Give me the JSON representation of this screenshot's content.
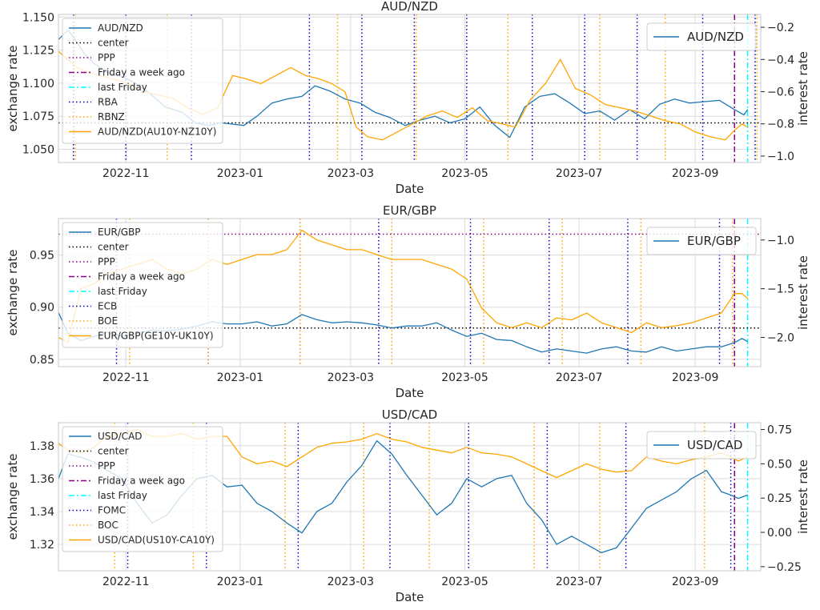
{
  "chart_data": [
    {
      "type": "line",
      "title": "AUD/NZD",
      "xlabel": "Date",
      "ylabel": "exchange rate",
      "y2label": "interest rate",
      "xlim": [
        "2022-09-26",
        "2023-10-06"
      ],
      "ylim": [
        1.04,
        1.152
      ],
      "y2lim": [
        -1.04,
        -0.12
      ],
      "x_ticks": [
        "2022-11",
        "2023-01",
        "2023-03",
        "2023-05",
        "2023-07",
        "2023-09"
      ],
      "y_ticks": [
        "1.050",
        "1.075",
        "1.100",
        "1.125",
        "1.150"
      ],
      "y2_ticks": [
        "-1.0",
        "-0.8",
        "-0.6",
        "-0.4",
        "-0.2"
      ],
      "grid": true,
      "legend_left": [
        "AUD/NZD",
        "center",
        "PPP",
        "Friday a week ago",
        "last Friday",
        "RBA",
        "RBNZ",
        "AUD/NZD(AU10Y-NZ10Y)"
      ],
      "legend_right": [
        "AUD/NZD"
      ],
      "colors": {
        "rate": "#1f77b4",
        "spread": "#ffa500",
        "center": "#000000",
        "ppp": "#800080",
        "week": "#8b008b",
        "last": "#00ffff",
        "cb1": "#0000cd",
        "cb2": "#ffa500"
      },
      "center": 1.07,
      "ppp": null,
      "friday_week_ago": "2023-09-22",
      "last_friday": "2023-09-29",
      "cb1_dates": [
        "2022-10-04",
        "2022-11-01",
        "2022-12-06",
        "2023-02-07",
        "2023-03-07",
        "2023-04-04",
        "2023-05-02",
        "2023-06-06",
        "2023-07-04",
        "2023-08-01",
        "2023-09-05",
        "2023-10-03"
      ],
      "cb2_dates": [
        "2022-10-05",
        "2022-11-23",
        "2023-02-22",
        "2023-04-05",
        "2023-05-24",
        "2023-07-12",
        "2023-08-16",
        "2023-10-04"
      ],
      "series": [
        {
          "name": "AUD/NZD",
          "axis": "left",
          "x": [
            "2022-09-26",
            "2022-10-01",
            "2022-10-04",
            "2022-10-10",
            "2022-10-15",
            "2022-10-22",
            "2022-10-30",
            "2022-11-06",
            "2022-11-14",
            "2022-11-22",
            "2022-12-01",
            "2022-12-08",
            "2022-12-15",
            "2022-12-22",
            "2022-12-28",
            "2023-01-03",
            "2023-01-10",
            "2023-01-18",
            "2023-01-26",
            "2023-02-03",
            "2023-02-10",
            "2023-02-18",
            "2023-02-26",
            "2023-03-06",
            "2023-03-14",
            "2023-03-22",
            "2023-03-30",
            "2023-04-07",
            "2023-04-15",
            "2023-04-23",
            "2023-05-01",
            "2023-05-09",
            "2023-05-17",
            "2023-05-25",
            "2023-06-02",
            "2023-06-10",
            "2023-06-18",
            "2023-06-26",
            "2023-07-04",
            "2023-07-12",
            "2023-07-20",
            "2023-07-28",
            "2023-08-05",
            "2023-08-13",
            "2023-08-21",
            "2023-08-29",
            "2023-09-06",
            "2023-09-14",
            "2023-09-22",
            "2023-09-27",
            "2023-09-29"
          ],
          "y": [
            1.133,
            1.14,
            1.135,
            1.122,
            1.115,
            1.108,
            1.105,
            1.1,
            1.092,
            1.082,
            1.078,
            1.07,
            1.068,
            1.07,
            1.069,
            1.068,
            1.075,
            1.085,
            1.088,
            1.09,
            1.098,
            1.094,
            1.088,
            1.085,
            1.078,
            1.074,
            1.068,
            1.072,
            1.075,
            1.07,
            1.073,
            1.082,
            1.068,
            1.059,
            1.082,
            1.09,
            1.092,
            1.085,
            1.077,
            1.079,
            1.072,
            1.08,
            1.073,
            1.084,
            1.088,
            1.085,
            1.086,
            1.087,
            1.08,
            1.076,
            1.08
          ]
        },
        {
          "name": "AUD/NZD(AU10Y-NZ10Y)",
          "axis": "right",
          "x": [
            "2022-09-26",
            "2022-10-01",
            "2022-10-06",
            "2022-10-12",
            "2022-10-18",
            "2022-10-25",
            "2022-11-02",
            "2022-11-10",
            "2022-11-18",
            "2022-11-26",
            "2022-12-04",
            "2022-12-12",
            "2022-12-20",
            "2022-12-28",
            "2023-01-04",
            "2023-01-12",
            "2023-01-20",
            "2023-01-28",
            "2023-02-05",
            "2023-02-12",
            "2023-02-19",
            "2023-02-26",
            "2023-03-04",
            "2023-03-10",
            "2023-03-18",
            "2023-03-26",
            "2023-04-03",
            "2023-04-11",
            "2023-04-19",
            "2023-04-27",
            "2023-05-05",
            "2023-05-13",
            "2023-05-21",
            "2023-05-28",
            "2023-06-05",
            "2023-06-13",
            "2023-06-21",
            "2023-06-29",
            "2023-07-07",
            "2023-07-15",
            "2023-07-23",
            "2023-07-31",
            "2023-08-08",
            "2023-08-16",
            "2023-08-24",
            "2023-09-01",
            "2023-09-09",
            "2023-09-17",
            "2023-09-22",
            "2023-09-26",
            "2023-09-29"
          ],
          "y": [
            -0.35,
            -0.4,
            -0.45,
            -0.48,
            -0.5,
            -0.52,
            -0.55,
            -0.6,
            -0.62,
            -0.64,
            -0.7,
            -0.74,
            -0.7,
            -0.5,
            -0.52,
            -0.55,
            -0.5,
            -0.45,
            -0.5,
            -0.52,
            -0.55,
            -0.6,
            -0.82,
            -0.88,
            -0.9,
            -0.85,
            -0.8,
            -0.75,
            -0.72,
            -0.76,
            -0.7,
            -0.78,
            -0.8,
            -0.82,
            -0.65,
            -0.55,
            -0.4,
            -0.58,
            -0.62,
            -0.68,
            -0.7,
            -0.72,
            -0.75,
            -0.78,
            -0.8,
            -0.85,
            -0.88,
            -0.9,
            -0.84,
            -0.8,
            -0.82
          ]
        }
      ]
    },
    {
      "type": "line",
      "title": "EUR/GBP",
      "xlabel": "Date",
      "ylabel": "exchange rate",
      "y2label": "interest rate",
      "xlim": [
        "2022-09-26",
        "2023-10-06"
      ],
      "ylim": [
        0.843,
        0.985
      ],
      "y2lim": [
        -2.3,
        -0.78
      ],
      "x_ticks": [
        "2022-11",
        "2023-01",
        "2023-03",
        "2023-05",
        "2023-07",
        "2023-09"
      ],
      "y_ticks": [
        "0.85",
        "0.90",
        "0.95"
      ],
      "y2_ticks": [
        "-2.0",
        "-1.5",
        "-1.0"
      ],
      "grid": true,
      "legend_left": [
        "EUR/GBP",
        "center",
        "PPP",
        "Friday a week ago",
        "last Friday",
        "ECB",
        "BOE",
        "EUR/GBP(GE10Y-UK10Y)"
      ],
      "legend_right": [
        "EUR/GBP"
      ],
      "colors": {
        "rate": "#1f77b4",
        "spread": "#ffa500",
        "center": "#000000",
        "ppp": "#800080",
        "week": "#8b008b",
        "last": "#00ffff",
        "cb1": "#0000cd",
        "cb2": "#ffa500"
      },
      "center": 0.88,
      "ppp": 0.97,
      "friday_week_ago": "2023-09-22",
      "last_friday": "2023-09-29",
      "cb1_dates": [
        "2022-10-27",
        "2022-12-15",
        "2023-02-02",
        "2023-03-16",
        "2023-05-04",
        "2023-06-15",
        "2023-07-27",
        "2023-09-14",
        "2023-10-26"
      ],
      "cb2_dates": [
        "2022-11-03",
        "2022-12-15",
        "2023-02-02",
        "2023-03-23",
        "2023-05-11",
        "2023-06-22",
        "2023-08-03",
        "2023-09-21"
      ],
      "series": [
        {
          "name": "EUR/GBP",
          "axis": "left",
          "x": [
            "2022-09-26",
            "2022-10-01",
            "2022-10-08",
            "2022-10-15",
            "2022-10-22",
            "2022-10-30",
            "2022-11-07",
            "2022-11-15",
            "2022-11-23",
            "2022-12-01",
            "2022-12-09",
            "2022-12-17",
            "2022-12-25",
            "2023-01-02",
            "2023-01-10",
            "2023-01-18",
            "2023-01-26",
            "2023-02-03",
            "2023-02-11",
            "2023-02-19",
            "2023-02-27",
            "2023-03-07",
            "2023-03-15",
            "2023-03-23",
            "2023-03-31",
            "2023-04-08",
            "2023-04-16",
            "2023-04-24",
            "2023-05-02",
            "2023-05-10",
            "2023-05-18",
            "2023-05-26",
            "2023-06-03",
            "2023-06-11",
            "2023-06-19",
            "2023-06-27",
            "2023-07-05",
            "2023-07-13",
            "2023-07-21",
            "2023-07-29",
            "2023-08-06",
            "2023-08-14",
            "2023-08-22",
            "2023-08-30",
            "2023-09-07",
            "2023-09-15",
            "2023-09-22",
            "2023-09-26",
            "2023-09-29"
          ],
          "y": [
            0.895,
            0.875,
            0.868,
            0.872,
            0.876,
            0.872,
            0.875,
            0.878,
            0.877,
            0.879,
            0.882,
            0.886,
            0.884,
            0.884,
            0.886,
            0.882,
            0.884,
            0.893,
            0.888,
            0.885,
            0.886,
            0.885,
            0.883,
            0.88,
            0.882,
            0.882,
            0.885,
            0.878,
            0.872,
            0.875,
            0.869,
            0.868,
            0.862,
            0.857,
            0.86,
            0.858,
            0.856,
            0.86,
            0.862,
            0.858,
            0.857,
            0.862,
            0.858,
            0.86,
            0.862,
            0.862,
            0.866,
            0.87,
            0.867
          ]
        },
        {
          "name": "EUR/GBP(GE10Y-UK10Y)",
          "axis": "right",
          "x": [
            "2022-09-26",
            "2022-10-01",
            "2022-10-08",
            "2022-10-15",
            "2022-10-22",
            "2022-10-30",
            "2022-11-07",
            "2022-11-15",
            "2022-11-23",
            "2022-12-01",
            "2022-12-09",
            "2022-12-17",
            "2022-12-25",
            "2023-01-02",
            "2023-01-10",
            "2023-01-18",
            "2023-01-26",
            "2023-02-03",
            "2023-02-11",
            "2023-02-19",
            "2023-02-27",
            "2023-03-07",
            "2023-03-15",
            "2023-03-23",
            "2023-03-31",
            "2023-04-08",
            "2023-04-16",
            "2023-04-24",
            "2023-05-02",
            "2023-05-10",
            "2023-05-18",
            "2023-05-26",
            "2023-06-03",
            "2023-06-11",
            "2023-06-19",
            "2023-06-27",
            "2023-07-05",
            "2023-07-13",
            "2023-07-21",
            "2023-07-29",
            "2023-08-06",
            "2023-08-14",
            "2023-08-22",
            "2023-08-30",
            "2023-09-07",
            "2023-09-15",
            "2023-09-22",
            "2023-09-26",
            "2023-09-29"
          ],
          "y": [
            -2.0,
            -2.05,
            -1.5,
            -1.45,
            -1.35,
            -1.3,
            -1.25,
            -1.2,
            -1.3,
            -1.35,
            -1.3,
            -1.2,
            -1.25,
            -1.2,
            -1.15,
            -1.15,
            -1.1,
            -0.9,
            -1.0,
            -1.05,
            -1.1,
            -1.1,
            -1.15,
            -1.2,
            -1.2,
            -1.2,
            -1.25,
            -1.3,
            -1.4,
            -1.7,
            -1.85,
            -1.9,
            -1.85,
            -1.9,
            -1.8,
            -1.82,
            -1.75,
            -1.85,
            -1.9,
            -1.95,
            -1.85,
            -1.9,
            -1.88,
            -1.85,
            -1.8,
            -1.75,
            -1.55,
            -1.55,
            -1.6
          ]
        }
      ]
    },
    {
      "type": "line",
      "title": "USD/CAD",
      "xlabel": "Date",
      "ylabel": "exchange rate",
      "y2label": "interest rate",
      "xlim": [
        "2022-09-26",
        "2023-10-06"
      ],
      "ylim": [
        1.304,
        1.394
      ],
      "y2lim": [
        -0.28,
        0.8
      ],
      "x_ticks": [
        "2022-11",
        "2023-01",
        "2023-03",
        "2023-05",
        "2023-07",
        "2023-09"
      ],
      "y_ticks": [
        "1.32",
        "1.34",
        "1.36",
        "1.38"
      ],
      "y2_ticks": [
        "-0.25",
        "0.00",
        "0.25",
        "0.50",
        "0.75"
      ],
      "grid": true,
      "legend_left": [
        "USD/CAD",
        "center",
        "PPP",
        "Friday a week ago",
        "last Friday",
        "FOMC",
        "BOC",
        "USD/CAD(US10Y-CA10Y)"
      ],
      "legend_right": [
        "USD/CAD"
      ],
      "colors": {
        "rate": "#1f77b4",
        "spread": "#ffa500",
        "center": "#000000",
        "ppp": "#800080",
        "week": "#8b008b",
        "last": "#00ffff",
        "cb1": "#0000cd",
        "cb2": "#ffa500"
      },
      "center": null,
      "ppp": null,
      "friday_week_ago": "2023-09-22",
      "last_friday": "2023-09-29",
      "cb1_dates": [
        "2022-11-02",
        "2022-12-14",
        "2023-02-01",
        "2023-03-22",
        "2023-05-03",
        "2023-06-14",
        "2023-07-26",
        "2023-09-20"
      ],
      "cb2_dates": [
        "2022-10-26",
        "2022-12-07",
        "2023-01-25",
        "2023-03-08",
        "2023-04-12",
        "2023-06-07",
        "2023-07-12",
        "2023-09-06",
        "2023-10-25"
      ],
      "series": [
        {
          "name": "USD/CAD",
          "axis": "left",
          "x": [
            "2022-09-26",
            "2022-10-01",
            "2022-10-08",
            "2022-10-15",
            "2022-10-22",
            "2022-10-30",
            "2022-11-07",
            "2022-11-15",
            "2022-11-23",
            "2022-12-01",
            "2022-12-09",
            "2022-12-17",
            "2022-12-25",
            "2023-01-02",
            "2023-01-10",
            "2023-01-18",
            "2023-01-26",
            "2023-02-03",
            "2023-02-11",
            "2023-02-19",
            "2023-02-27",
            "2023-03-07",
            "2023-03-15",
            "2023-03-23",
            "2023-03-31",
            "2023-04-08",
            "2023-04-16",
            "2023-04-24",
            "2023-05-02",
            "2023-05-10",
            "2023-05-18",
            "2023-05-26",
            "2023-06-03",
            "2023-06-11",
            "2023-06-19",
            "2023-06-27",
            "2023-07-05",
            "2023-07-13",
            "2023-07-21",
            "2023-07-29",
            "2023-08-06",
            "2023-08-14",
            "2023-08-22",
            "2023-08-30",
            "2023-09-07",
            "2023-09-15",
            "2023-09-20",
            "2023-09-24",
            "2023-09-29"
          ],
          "y": [
            1.36,
            1.375,
            1.373,
            1.37,
            1.365,
            1.36,
            1.345,
            1.333,
            1.338,
            1.35,
            1.36,
            1.362,
            1.355,
            1.356,
            1.345,
            1.34,
            1.333,
            1.327,
            1.34,
            1.345,
            1.358,
            1.368,
            1.383,
            1.375,
            1.362,
            1.35,
            1.338,
            1.345,
            1.36,
            1.355,
            1.36,
            1.362,
            1.345,
            1.335,
            1.32,
            1.325,
            1.32,
            1.315,
            1.318,
            1.33,
            1.342,
            1.347,
            1.352,
            1.36,
            1.365,
            1.352,
            1.35,
            1.348,
            1.35
          ]
        },
        {
          "name": "USD/CAD(US10Y-CA10Y)",
          "axis": "right",
          "x": [
            "2022-09-26",
            "2022-10-01",
            "2022-10-08",
            "2022-10-15",
            "2022-10-22",
            "2022-10-30",
            "2022-11-07",
            "2022-11-15",
            "2022-11-23",
            "2022-12-01",
            "2022-12-09",
            "2022-12-17",
            "2022-12-25",
            "2023-01-02",
            "2023-01-10",
            "2023-01-18",
            "2023-01-26",
            "2023-02-03",
            "2023-02-11",
            "2023-02-19",
            "2023-02-27",
            "2023-03-07",
            "2023-03-15",
            "2023-03-23",
            "2023-03-31",
            "2023-04-08",
            "2023-04-16",
            "2023-04-24",
            "2023-05-02",
            "2023-05-10",
            "2023-05-18",
            "2023-05-26",
            "2023-06-03",
            "2023-06-11",
            "2023-06-19",
            "2023-06-27",
            "2023-07-05",
            "2023-07-13",
            "2023-07-21",
            "2023-07-29",
            "2023-08-06",
            "2023-08-14",
            "2023-08-22",
            "2023-08-30",
            "2023-09-07",
            "2023-09-15",
            "2023-09-20",
            "2023-09-24",
            "2023-09-29"
          ],
          "y": [
            0.65,
            0.6,
            0.58,
            0.62,
            0.7,
            0.72,
            0.75,
            0.7,
            0.7,
            0.72,
            0.68,
            0.7,
            0.7,
            0.55,
            0.5,
            0.52,
            0.48,
            0.55,
            0.62,
            0.65,
            0.66,
            0.68,
            0.72,
            0.68,
            0.66,
            0.62,
            0.6,
            0.58,
            0.62,
            0.58,
            0.57,
            0.55,
            0.5,
            0.45,
            0.4,
            0.45,
            0.5,
            0.46,
            0.44,
            0.45,
            0.55,
            0.52,
            0.5,
            0.53,
            0.55,
            0.58,
            0.55,
            0.52,
            0.55
          ]
        }
      ]
    }
  ]
}
